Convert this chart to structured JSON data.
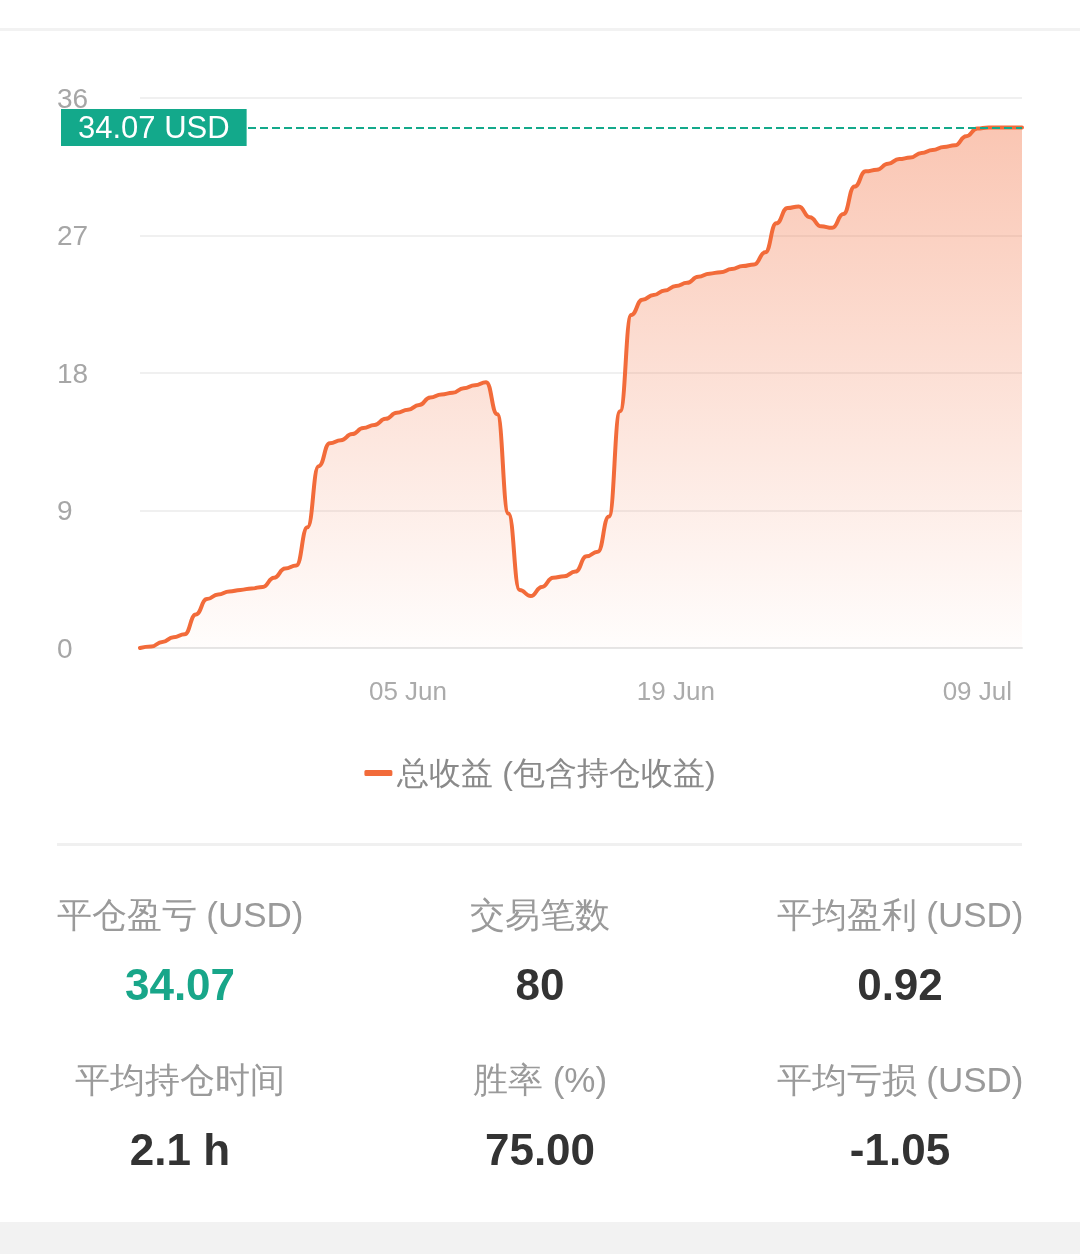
{
  "chart_data": [
    {
      "type": "area",
      "categories": [
        null,
        null,
        null,
        null,
        null,
        null,
        null,
        null,
        null,
        null,
        null,
        null,
        null,
        null,
        null,
        null,
        null,
        null,
        null,
        null,
        null,
        null,
        null,
        null,
        "05 Jun",
        null,
        null,
        null,
        null,
        null,
        null,
        null,
        null,
        null,
        null,
        null,
        null,
        null,
        null,
        null,
        null,
        null,
        null,
        null,
        null,
        null,
        null,
        null,
        "19 Jun",
        null,
        null,
        null,
        null,
        null,
        null,
        null,
        null,
        null,
        null,
        null,
        null,
        null,
        null,
        null,
        null,
        null,
        null,
        null,
        null,
        null,
        null,
        null,
        null,
        null,
        null,
        "09 Jul",
        null,
        null,
        null,
        null
      ],
      "series": [
        {
          "name": "总收益 (包含持仓收益)",
          "color": "#f26b3a",
          "values": [
            0,
            0.1,
            0.4,
            0.7,
            0.9,
            2.2,
            3.2,
            3.5,
            3.7,
            3.8,
            3.9,
            4.0,
            4.6,
            5.2,
            5.4,
            7.9,
            11.9,
            13.4,
            13.6,
            14.0,
            14.4,
            14.6,
            15.0,
            15.4,
            15.6,
            15.9,
            16.4,
            16.6,
            16.7,
            17.0,
            17.2,
            17.4,
            15.3,
            8.8,
            3.8,
            3.4,
            4.0,
            4.6,
            4.7,
            5.0,
            6.0,
            6.3,
            8.6,
            15.5,
            21.8,
            22.8,
            23.1,
            23.4,
            23.7,
            23.9,
            24.3,
            24.5,
            24.6,
            24.8,
            25.0,
            25.1,
            25.9,
            27.8,
            28.8,
            28.9,
            28.2,
            27.6,
            27.5,
            28.4,
            30.2,
            31.2,
            31.3,
            31.7,
            32.0,
            32.1,
            32.4,
            32.6,
            32.8,
            32.9,
            33.5,
            34.0,
            34.07,
            34.07,
            34.07,
            34.07
          ]
        }
      ],
      "ylim": [
        0,
        36
      ],
      "yticks": [
        0,
        9,
        18,
        27,
        36
      ],
      "grid": "y",
      "legend": "bottom",
      "marker": "none",
      "ref_lines": [
        {
          "axis": "y",
          "value": 34.07,
          "label": "34.07 USD",
          "color": "#13a98b",
          "line_style": "dashed"
        }
      ]
    },
    {
      "type": "other",
      "annotations": [
        "平仓盈亏 (USD)",
        "34.07",
        "交易笔数",
        "80",
        "平均盈利 (USD)",
        "0.92",
        "平均持仓时间",
        "2.1 h",
        "胜率 (%)",
        "75.00",
        "平均亏损 (USD)",
        "-1.05"
      ]
    }
  ]
}
